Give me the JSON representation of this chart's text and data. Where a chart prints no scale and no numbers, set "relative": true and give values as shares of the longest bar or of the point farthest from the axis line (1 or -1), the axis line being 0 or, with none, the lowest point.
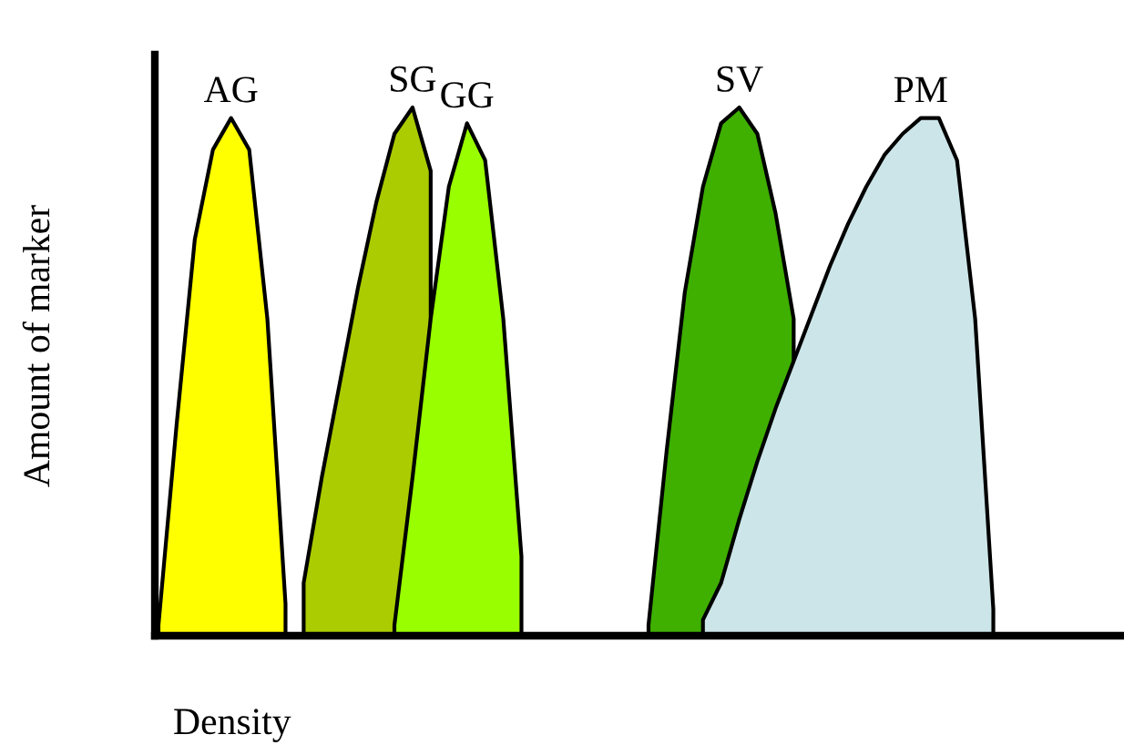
{
  "chart_data": {
    "type": "area",
    "relative": true,
    "xlabel": "Density",
    "ylabel": "Amount of marker",
    "grid": false,
    "categories": [
      null,
      null,
      null,
      null,
      null,
      null,
      null,
      null,
      null,
      null,
      null,
      null,
      null,
      null,
      null,
      null,
      null,
      null,
      null,
      null,
      null,
      null,
      null,
      null,
      null,
      null,
      null,
      null,
      null,
      null,
      null,
      null,
      null,
      null,
      null,
      null,
      null,
      null,
      null,
      null,
      null,
      null,
      null,
      null,
      null,
      null,
      null,
      null,
      null,
      null,
      null,
      null,
      null,
      null
    ],
    "series": [
      {
        "name": "AG",
        "color": "#ffff00",
        "values": [
          0.02,
          0.4,
          0.75,
          0.92,
          0.98,
          0.92,
          0.6,
          0.06,
          null,
          null,
          null,
          null,
          null,
          null,
          null,
          null,
          null,
          null,
          null,
          null,
          null,
          null,
          null,
          null,
          null,
          null,
          null,
          null,
          null,
          null,
          null,
          null,
          null,
          null,
          null,
          null,
          null,
          null,
          null,
          null,
          null,
          null,
          null,
          null,
          null,
          null,
          null,
          null,
          null,
          null,
          null,
          null,
          null,
          null
        ]
      },
      {
        "name": "SG",
        "color": "#aacc00",
        "values": [
          null,
          null,
          null,
          null,
          null,
          null,
          null,
          null,
          0.1,
          0.3,
          0.48,
          0.66,
          0.82,
          0.95,
          1.0,
          0.88,
          null,
          null,
          null,
          null,
          null,
          null,
          null,
          null,
          null,
          null,
          null,
          null,
          null,
          null,
          null,
          null,
          null,
          null,
          null,
          null,
          null,
          null,
          null,
          null,
          null,
          null,
          null,
          null,
          null,
          null,
          null,
          null,
          null,
          null,
          null,
          null,
          null,
          null
        ]
      },
      {
        "name": "GG",
        "color": "#99ff00",
        "values": [
          null,
          null,
          null,
          null,
          null,
          null,
          null,
          null,
          null,
          null,
          null,
          null,
          null,
          0.02,
          0.3,
          0.6,
          0.85,
          0.97,
          0.9,
          0.6,
          0.15,
          null,
          null,
          null,
          null,
          null,
          null,
          null,
          null,
          null,
          null,
          null,
          null,
          null,
          null,
          null,
          null,
          null,
          null,
          null,
          null,
          null,
          null,
          null,
          null,
          null,
          null,
          null,
          null,
          null,
          null,
          null,
          null,
          null
        ]
      },
      {
        "name": "SV",
        "color": "#3faf00",
        "values": [
          null,
          null,
          null,
          null,
          null,
          null,
          null,
          null,
          null,
          null,
          null,
          null,
          null,
          null,
          null,
          null,
          null,
          null,
          null,
          null,
          null,
          null,
          null,
          null,
          null,
          null,
          null,
          0.02,
          0.35,
          0.65,
          0.85,
          0.97,
          1.0,
          0.95,
          0.8,
          0.6,
          null,
          null,
          null,
          null,
          null,
          null,
          null,
          null,
          null,
          null,
          null,
          null,
          null,
          null,
          null,
          null,
          null,
          null
        ]
      },
      {
        "name": "PM",
        "color": "#cce5e8",
        "values": [
          null,
          null,
          null,
          null,
          null,
          null,
          null,
          null,
          null,
          null,
          null,
          null,
          null,
          null,
          null,
          null,
          null,
          null,
          null,
          null,
          null,
          null,
          null,
          null,
          null,
          null,
          null,
          null,
          null,
          null,
          0.03,
          0.1,
          0.22,
          0.33,
          0.43,
          0.52,
          0.61,
          0.7,
          0.78,
          0.85,
          0.91,
          0.95,
          0.98,
          0.98,
          0.9,
          0.6,
          0.05,
          null,
          null,
          null,
          null,
          null,
          null,
          null
        ]
      }
    ]
  }
}
